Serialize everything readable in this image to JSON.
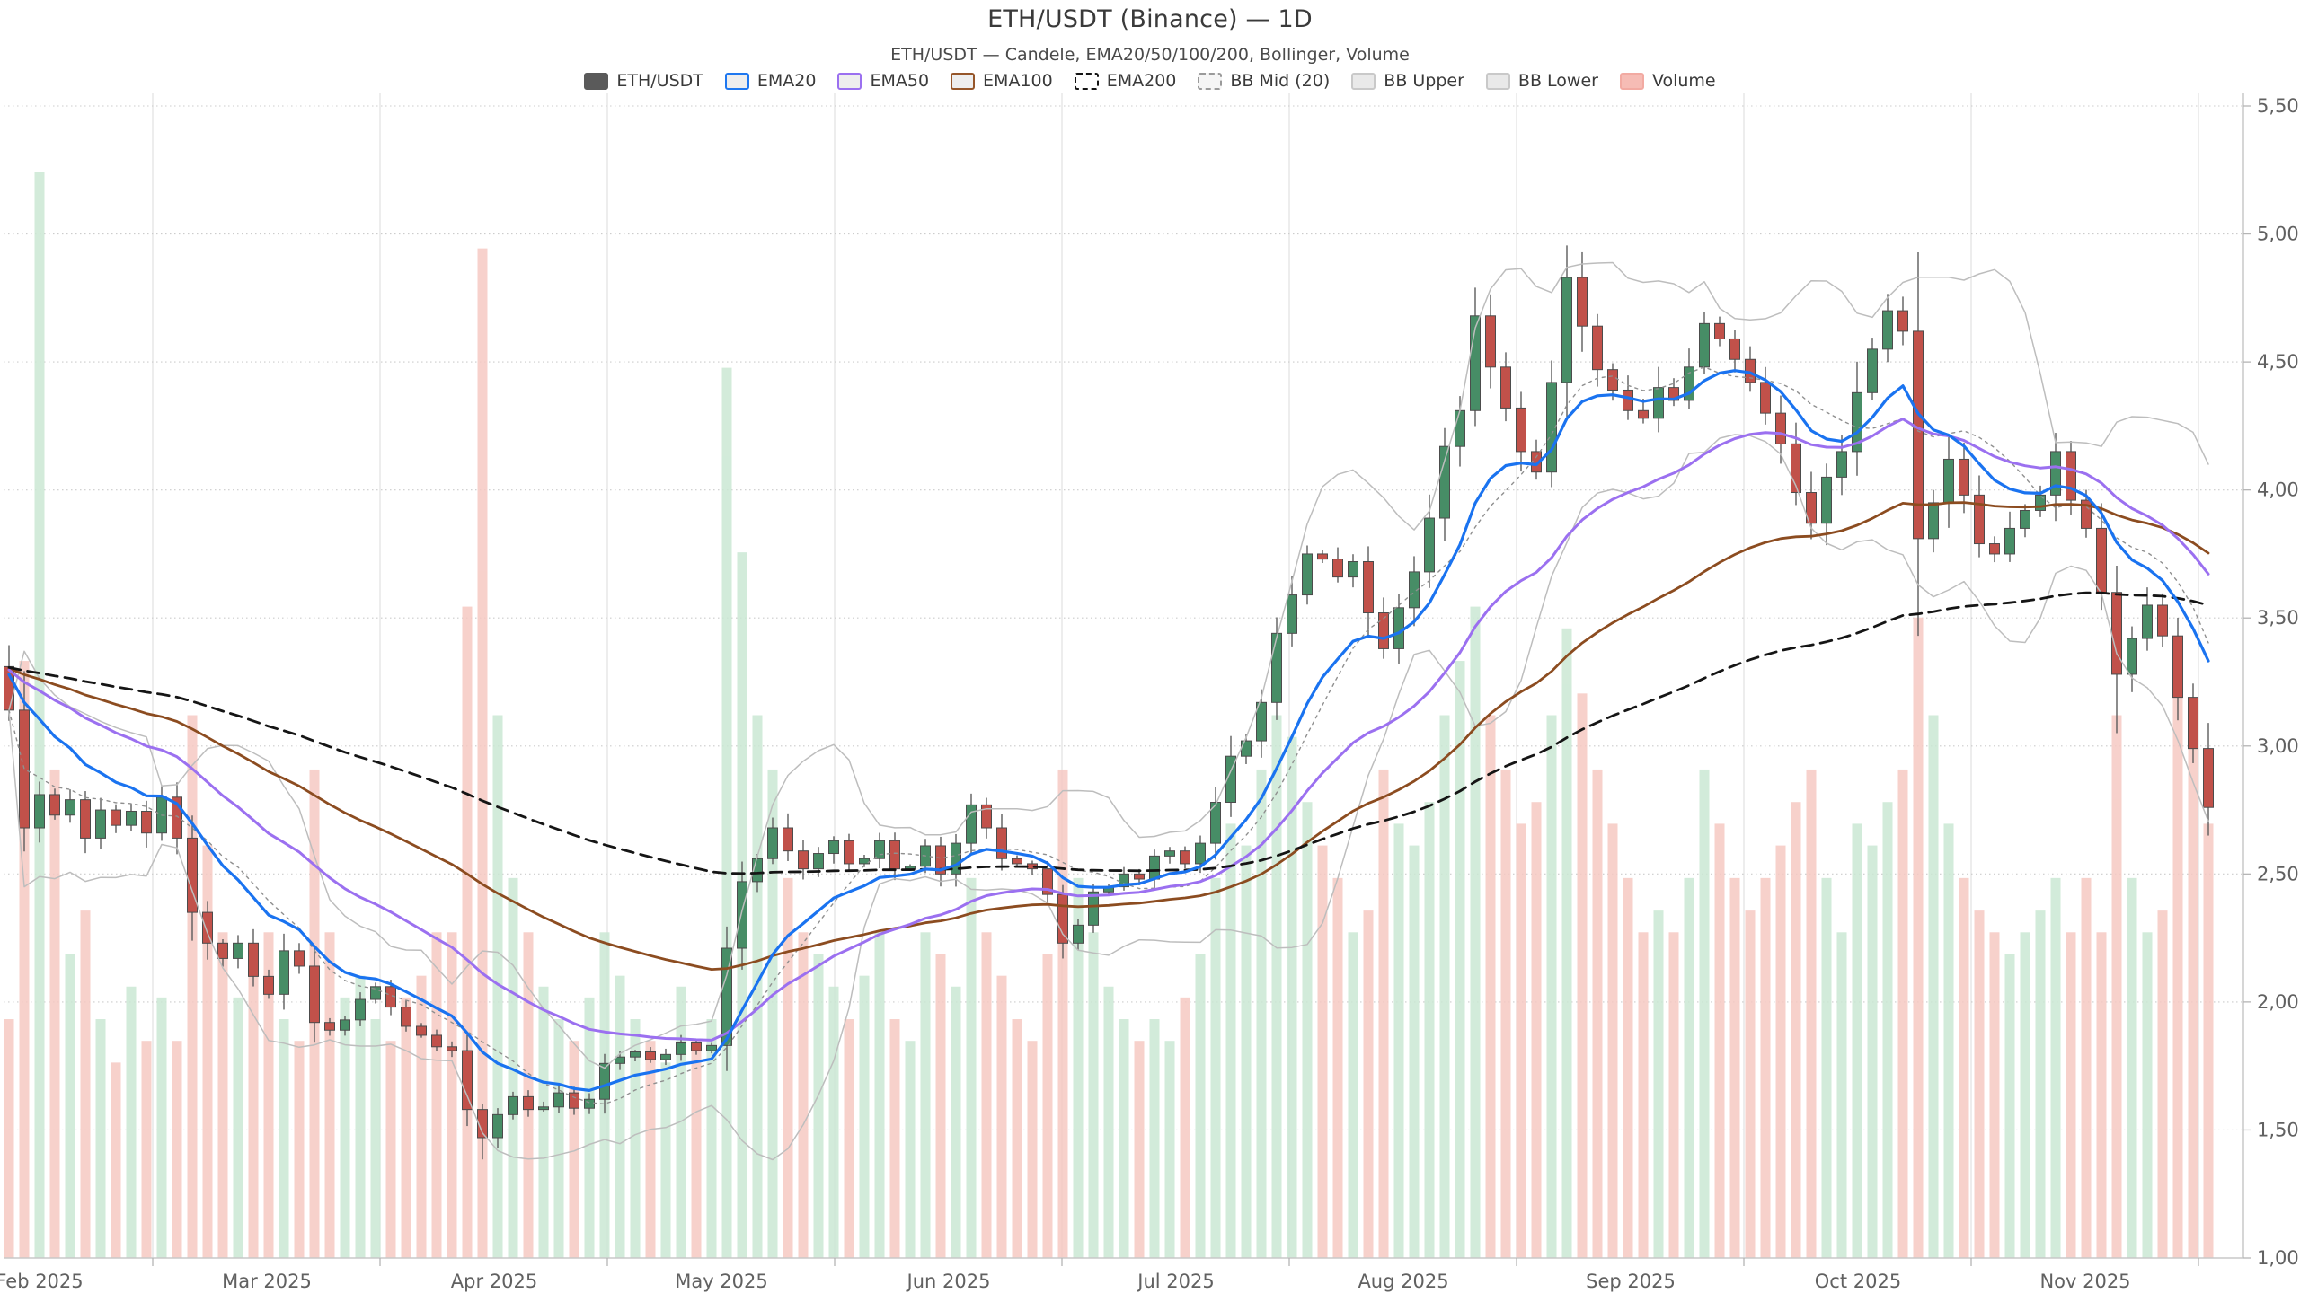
{
  "header": {
    "title": "ETH/USDT (Binance) — 1D",
    "subtitle": "ETH/USDT — Candele, EMA20/50/100/200, Bollinger, Volume"
  },
  "legend": {
    "items": [
      {
        "id": "ethusdt",
        "label": "ETH/USDT",
        "fill": "#5a5a5a",
        "border": "#5a5a5a",
        "dashed": false
      },
      {
        "id": "ema20",
        "label": "EMA20",
        "fill": "#eeeeee",
        "border": "#1f78f0",
        "dashed": false
      },
      {
        "id": "ema50",
        "label": "EMA50",
        "fill": "#eeeeee",
        "border": "#9b70f0",
        "dashed": false
      },
      {
        "id": "ema100",
        "label": "EMA100",
        "fill": "#eeeeee",
        "border": "#96562a",
        "dashed": false
      },
      {
        "id": "ema200",
        "label": "EMA200",
        "fill": "#ffffff",
        "border": "#141414",
        "dashed": true
      },
      {
        "id": "bbmid",
        "label": "BB Mid (20)",
        "fill": "#f5f5f5",
        "border": "#9a9a9a",
        "dashed": true
      },
      {
        "id": "bbupper",
        "label": "BB Upper",
        "fill": "#e9e9e9",
        "border": "#c9c9c9",
        "dashed": false
      },
      {
        "id": "bblower",
        "label": "BB Lower",
        "fill": "#e9e9e9",
        "border": "#c9c9c9",
        "dashed": false
      },
      {
        "id": "volume",
        "label": "Volume",
        "fill": "#f6bcb5",
        "border": "#f2aaa2",
        "dashed": false
      }
    ]
  },
  "chart_data": {
    "type": "candlestick+volume",
    "symbol": "ETH/USDT",
    "exchange": "Binance",
    "timeframe": "1D",
    "x_tick_labels": [
      "Feb 2025",
      "Mar 2025",
      "Apr 2025",
      "May 2025",
      "Jun 2025",
      "Jul 2025",
      "Aug 2025",
      "Sep 2025",
      "Oct 2025",
      "Nov 2025"
    ],
    "y_tick_values": [
      1000,
      1500,
      2000,
      2500,
      3000,
      3500,
      4000,
      4500,
      5000,
      5500
    ],
    "y_tick_labels": [
      "1,000",
      "1,500",
      "2,000",
      "2,500",
      "3,000",
      "3,500",
      "4,000",
      "4,500",
      "5,000",
      "5,500"
    ],
    "y_range": [
      1000,
      5500
    ],
    "grid": {
      "horizontal": "dotted",
      "vertical": "solid-light"
    },
    "legend_position": "top-center",
    "first_open": 3310,
    "bars_note": "each bar ≈ 2 trading days; values [close, relative_volume]",
    "bars": [
      [
        3140,
        0.22
      ],
      [
        2680,
        0.55
      ],
      [
        2810,
        1.0
      ],
      [
        2730,
        0.45
      ],
      [
        2790,
        0.28
      ],
      [
        2640,
        0.32
      ],
      [
        2750,
        0.22
      ],
      [
        2690,
        0.18
      ],
      [
        2745,
        0.25
      ],
      [
        2660,
        0.2
      ],
      [
        2800,
        0.24
      ],
      [
        2640,
        0.2
      ],
      [
        2350,
        0.5
      ],
      [
        2230,
        0.38
      ],
      [
        2170,
        0.3
      ],
      [
        2230,
        0.24
      ],
      [
        2100,
        0.26
      ],
      [
        2030,
        0.3
      ],
      [
        2200,
        0.22
      ],
      [
        2140,
        0.2
      ],
      [
        1920,
        0.45
      ],
      [
        1890,
        0.3
      ],
      [
        1930,
        0.24
      ],
      [
        2010,
        0.26
      ],
      [
        2060,
        0.22
      ],
      [
        1980,
        0.2
      ],
      [
        1905,
        0.24
      ],
      [
        1870,
        0.26
      ],
      [
        1825,
        0.3
      ],
      [
        1810,
        0.3
      ],
      [
        1580,
        0.6
      ],
      [
        1470,
        0.93
      ],
      [
        1560,
        0.5
      ],
      [
        1630,
        0.35
      ],
      [
        1580,
        0.3
      ],
      [
        1590,
        0.25
      ],
      [
        1645,
        0.22
      ],
      [
        1585,
        0.2
      ],
      [
        1620,
        0.24
      ],
      [
        1760,
        0.3
      ],
      [
        1785,
        0.26
      ],
      [
        1805,
        0.22
      ],
      [
        1775,
        0.2
      ],
      [
        1795,
        0.18
      ],
      [
        1840,
        0.25
      ],
      [
        1810,
        0.2
      ],
      [
        1830,
        0.22
      ],
      [
        2210,
        0.82
      ],
      [
        2470,
        0.65
      ],
      [
        2560,
        0.5
      ],
      [
        2680,
        0.45
      ],
      [
        2590,
        0.35
      ],
      [
        2520,
        0.3
      ],
      [
        2580,
        0.28
      ],
      [
        2630,
        0.25
      ],
      [
        2540,
        0.22
      ],
      [
        2560,
        0.26
      ],
      [
        2630,
        0.3
      ],
      [
        2520,
        0.22
      ],
      [
        2530,
        0.2
      ],
      [
        2610,
        0.3
      ],
      [
        2500,
        0.28
      ],
      [
        2620,
        0.25
      ],
      [
        2770,
        0.35
      ],
      [
        2680,
        0.3
      ],
      [
        2560,
        0.26
      ],
      [
        2540,
        0.22
      ],
      [
        2520,
        0.2
      ],
      [
        2420,
        0.28
      ],
      [
        2230,
        0.45
      ],
      [
        2300,
        0.35
      ],
      [
        2430,
        0.3
      ],
      [
        2450,
        0.25
      ],
      [
        2500,
        0.22
      ],
      [
        2480,
        0.2
      ],
      [
        2570,
        0.22
      ],
      [
        2590,
        0.2
      ],
      [
        2540,
        0.24
      ],
      [
        2620,
        0.28
      ],
      [
        2780,
        0.35
      ],
      [
        2960,
        0.4
      ],
      [
        3020,
        0.38
      ],
      [
        3170,
        0.45
      ],
      [
        3440,
        0.5
      ],
      [
        3590,
        0.48
      ],
      [
        3750,
        0.42
      ],
      [
        3730,
        0.38
      ],
      [
        3660,
        0.35
      ],
      [
        3720,
        0.3
      ],
      [
        3520,
        0.32
      ],
      [
        3380,
        0.45
      ],
      [
        3540,
        0.4
      ],
      [
        3680,
        0.38
      ],
      [
        3890,
        0.42
      ],
      [
        4170,
        0.5
      ],
      [
        4310,
        0.55
      ],
      [
        4680,
        0.6
      ],
      [
        4480,
        0.5
      ],
      [
        4320,
        0.45
      ],
      [
        4150,
        0.4
      ],
      [
        4070,
        0.42
      ],
      [
        4420,
        0.5
      ],
      [
        4830,
        0.58
      ],
      [
        4640,
        0.52
      ],
      [
        4470,
        0.45
      ],
      [
        4390,
        0.4
      ],
      [
        4310,
        0.35
      ],
      [
        4280,
        0.3
      ],
      [
        4400,
        0.32
      ],
      [
        4350,
        0.3
      ],
      [
        4480,
        0.35
      ],
      [
        4650,
        0.45
      ],
      [
        4590,
        0.4
      ],
      [
        4510,
        0.35
      ],
      [
        4420,
        0.32
      ],
      [
        4300,
        0.35
      ],
      [
        4180,
        0.38
      ],
      [
        3990,
        0.42
      ],
      [
        3870,
        0.45
      ],
      [
        4050,
        0.35
      ],
      [
        4150,
        0.3
      ],
      [
        4380,
        0.4
      ],
      [
        4550,
        0.38
      ],
      [
        4700,
        0.42
      ],
      [
        4620,
        0.45
      ],
      [
        3810,
        0.59
      ],
      [
        3950,
        0.5
      ],
      [
        4120,
        0.4
      ],
      [
        3980,
        0.35
      ],
      [
        3790,
        0.32
      ],
      [
        3750,
        0.3
      ],
      [
        3850,
        0.28
      ],
      [
        3920,
        0.3
      ],
      [
        3980,
        0.32
      ],
      [
        4150,
        0.35
      ],
      [
        3960,
        0.3
      ],
      [
        3850,
        0.35
      ],
      [
        3600,
        0.3
      ],
      [
        3280,
        0.5
      ],
      [
        3420,
        0.35
      ],
      [
        3550,
        0.3
      ],
      [
        3430,
        0.32
      ],
      [
        3190,
        0.55
      ],
      [
        2990,
        0.5
      ],
      [
        2760,
        0.4
      ]
    ],
    "wick_overrides": {
      "31": [
        null,
        1385
      ],
      "96": [
        4790,
        null
      ],
      "102": [
        4955,
        null
      ],
      "124": [
        4755,
        null
      ],
      "125": [
        null,
        3430
      ],
      "138": [
        null,
        3050
      ],
      "144": [
        null,
        2650
      ]
    },
    "overlays": [
      {
        "id": "ema20",
        "label": "EMA20",
        "period_days": 20,
        "color": "#1a73f0",
        "style": "solid"
      },
      {
        "id": "ema50",
        "label": "EMA50",
        "period_days": 50,
        "color": "#9b70f0",
        "style": "solid"
      },
      {
        "id": "ema100",
        "label": "EMA100",
        "period_days": 100,
        "color": "#8c4c20",
        "style": "solid"
      },
      {
        "id": "ema200",
        "label": "EMA200",
        "period_days": 200,
        "color": "#151515",
        "style": "dashed"
      },
      {
        "id": "bollinger",
        "label": "Bollinger",
        "period_days": 20,
        "stdev_mult": 2,
        "mid_color": "#8f8f8f",
        "band_color": "#bdbdbd"
      }
    ],
    "colors": {
      "candle_up": "#478d66",
      "candle_down": "#c1514a",
      "candle_stroke": "#4c4c4c",
      "wick": "#5c5c5c",
      "volume_up": "#cbe8d4",
      "volume_down": "#f6c9c3",
      "grid_h": "#cccccc",
      "grid_v": "#e3e3e3",
      "spine": "#c8c8c8",
      "tick": "#b5b5b5",
      "tick_text": "#616161"
    }
  }
}
